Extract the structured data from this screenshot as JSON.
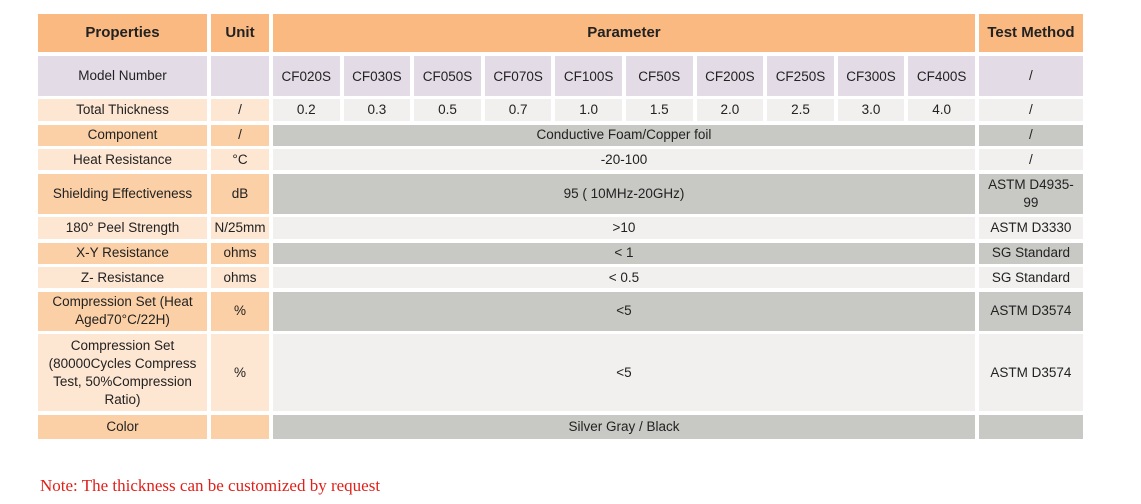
{
  "headers": {
    "properties": "Properties",
    "unit": "Unit",
    "parameter": "Parameter",
    "test_method": "Test Method"
  },
  "model_row": {
    "label": "Model Number",
    "unit": "",
    "models": [
      "CF020S",
      "CF030S",
      "CF050S",
      "CF070S",
      "CF100S",
      "CF50S",
      "CF200S",
      "CF250S",
      "CF300S",
      "CF400S"
    ],
    "test": "/"
  },
  "thickness_row": {
    "label": "Total Thickness",
    "unit": "/",
    "values": [
      "0.2",
      "0.3",
      "0.5",
      "0.7",
      "1.0",
      "1.5",
      "2.0",
      "2.5",
      "3.0",
      "4.0"
    ],
    "test": "/"
  },
  "rows": [
    {
      "label": "Component",
      "unit": "/",
      "value": "Conductive Foam/Copper foil",
      "test": "/"
    },
    {
      "label": "Heat Resistance",
      "unit": "°C",
      "value": "-20-100",
      "test": "/"
    },
    {
      "label": "Shielding Effectiveness",
      "unit": "dB",
      "value": "95 ( 10MHz-20GHz)",
      "test": "ASTM D4935-99"
    },
    {
      "label": "180° Peel Strength",
      "unit": "N/25mm",
      "value": ">10",
      "test": "ASTM D3330"
    },
    {
      "label": "X-Y Resistance",
      "unit": "ohms",
      "value": "< 1",
      "test": "SG Standard"
    },
    {
      "label": "Z- Resistance",
      "unit": "ohms",
      "value": "< 0.5",
      "test": "SG Standard"
    },
    {
      "label": "Compression Set (Heat Aged70°C/22H)",
      "unit": "%",
      "value": "<5",
      "test": "ASTM D3574"
    },
    {
      "label": "Compression Set (80000Cycles Compress Test, 50%Compression Ratio)",
      "unit": "%",
      "value": "<5",
      "test": "ASTM D3574"
    },
    {
      "label": "Color",
      "unit": "",
      "value": "Silver Gray / Black",
      "test": ""
    }
  ],
  "note": "Note: The thickness can be customized by request",
  "colors": {
    "header": "#fbb982",
    "model_row": "#e3dbe6",
    "label_light": "#fde6d2",
    "label_dark": "#fbd0a6",
    "value_light": "#f1f0ee",
    "value_dark": "#c8c8c4",
    "note": "#e0201a"
  }
}
